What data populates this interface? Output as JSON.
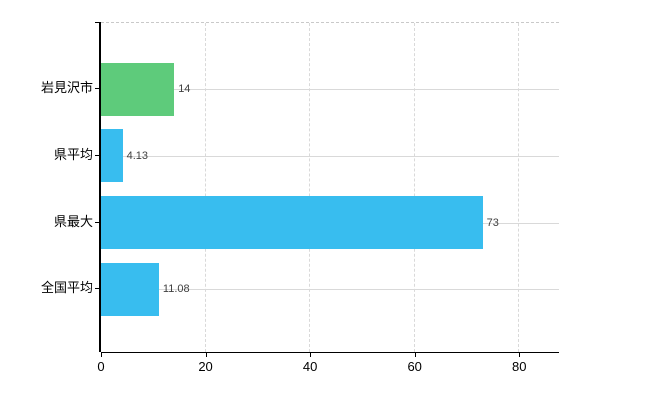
{
  "chart_data": {
    "type": "bar",
    "orientation": "horizontal",
    "title": "",
    "xlabel": "",
    "ylabel": "",
    "categories": [
      "岩見沢市",
      "県平均",
      "県最大",
      "全国平均"
    ],
    "values": [
      14,
      4.13,
      73,
      11.08
    ],
    "value_labels": [
      "14",
      "4.13",
      "73",
      "11.08"
    ],
    "bar_colors": [
      "#5ecb7b",
      "#38bdef",
      "#38bdef",
      "#38bdef"
    ],
    "xlim": [
      0,
      87.6
    ],
    "xticks": [
      0,
      20,
      40,
      60,
      80
    ],
    "xtick_labels": [
      "0",
      "20",
      "40",
      "60",
      "80"
    ],
    "grid": true,
    "legend": false
  },
  "colors": {
    "green_bar": "#5ecb7b",
    "blue_bar": "#38bdef",
    "gridline": "#d9d9d9",
    "axis": "#000000",
    "value_text": "#404040",
    "background": "#ffffff"
  }
}
